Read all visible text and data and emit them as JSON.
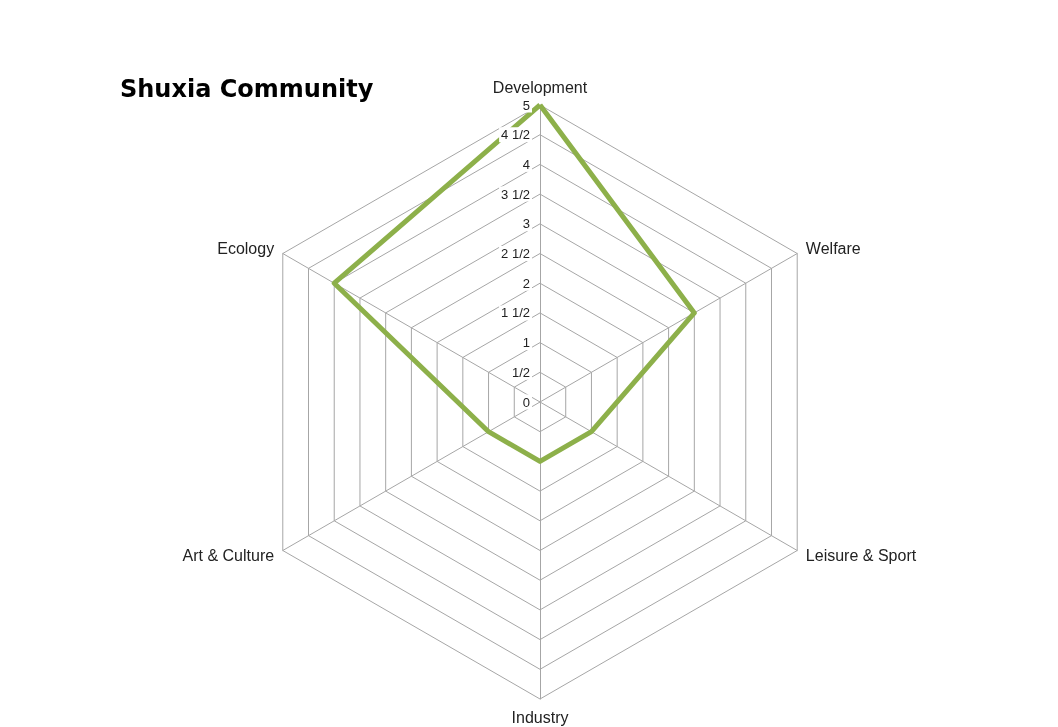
{
  "chart_data": {
    "type": "radar",
    "title": "Shuxia Community",
    "categories": [
      "Development",
      "Welfare",
      "Leisure & Sport",
      "Industry",
      "Art & Culture",
      "Ecology"
    ],
    "series": [
      {
        "color": "#8db04a",
        "values": [
          5,
          3,
          1,
          1,
          1,
          4
        ]
      }
    ],
    "ylim": [
      0,
      5
    ],
    "yticks": [
      0,
      {
        "value": 0.5,
        "label": "1/2"
      },
      1,
      {
        "value": 1.5,
        "label": "1 1/2"
      },
      2,
      {
        "value": 2.5,
        "label": "2 1/2"
      },
      3,
      {
        "value": 3.5,
        "label": "3 1/2"
      },
      4,
      {
        "value": 4.5,
        "label": "4 1/2"
      },
      5
    ],
    "grid": true,
    "marker": "none"
  }
}
